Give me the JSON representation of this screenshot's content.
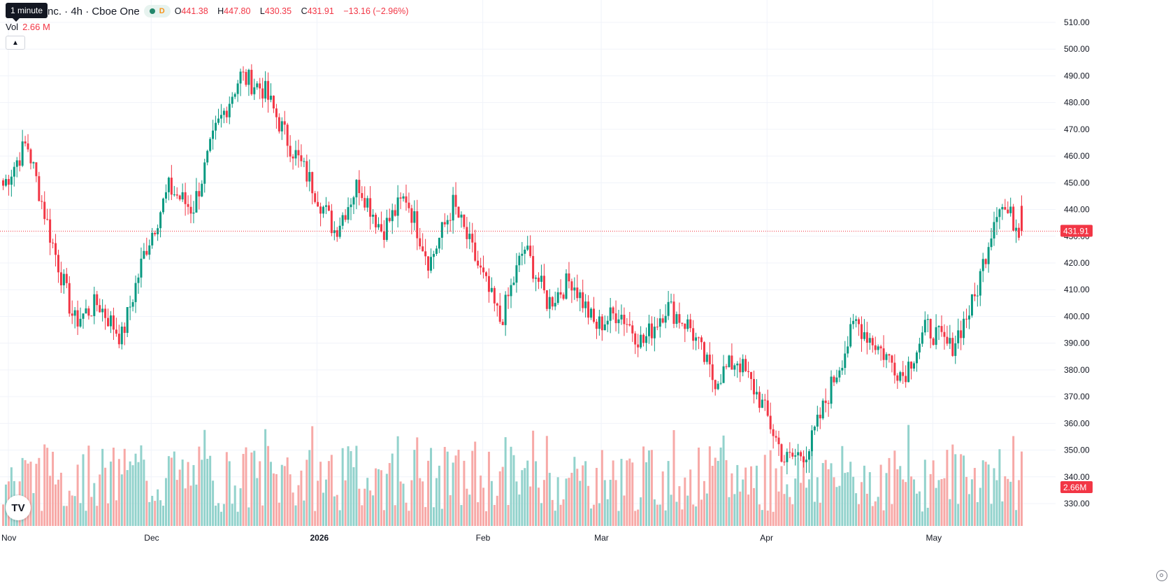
{
  "header": {
    "tooltip": "1 minute",
    "symbol_title": "nc. · 4h · Cboe One",
    "market_status_letter": "D",
    "ohlc": {
      "o_label": "O",
      "o": "441.38",
      "h_label": "H",
      "h": "447.80",
      "l_label": "L",
      "l": "430.35",
      "c_label": "C",
      "c": "431.91",
      "change": "−13.16 (−2.96%)"
    },
    "volume_label": "Vol",
    "volume_value": "2.66 M",
    "collapse_icon": "chevron-up-icon",
    "logo_text": "TV"
  },
  "colors": {
    "up": "#089981",
    "down": "#f23645",
    "up_volume": "#92d2cc",
    "down_volume": "#f7a9a7",
    "grid": "#f0f3fa",
    "axis_text": "#131722"
  },
  "chart_data": {
    "type": "candlestick",
    "interval": "4h",
    "price_axis": {
      "min": 330,
      "max": 510,
      "ticks": [
        "510.00",
        "500.00",
        "490.00",
        "480.00",
        "470.00",
        "460.00",
        "450.00",
        "440.00",
        "430.00",
        "420.00",
        "410.00",
        "400.00",
        "390.00",
        "380.00",
        "370.00",
        "360.00",
        "350.00",
        "340.00",
        "330.00"
      ]
    },
    "time_axis": {
      "labels": [
        {
          "label": "Nov",
          "bold": false
        },
        {
          "label": "Dec",
          "bold": false
        },
        {
          "label": "2026",
          "bold": true
        },
        {
          "label": "Feb",
          "bold": false
        },
        {
          "label": "Mar",
          "bold": false
        },
        {
          "label": "Apr",
          "bold": false
        },
        {
          "label": "May",
          "bold": false
        }
      ]
    },
    "last_price": "431.91",
    "last_volume": "2.66M",
    "key_points": [
      {
        "label": "Nov",
        "close": 449
      },
      {
        "label": "Nov",
        "close": 465
      },
      {
        "label": "Nov",
        "close": 430
      },
      {
        "label": "Nov",
        "close": 398
      },
      {
        "label": "Nov",
        "close": 405
      },
      {
        "label": "Nov",
        "close": 392
      },
      {
        "label": "Dec",
        "close": 425
      },
      {
        "label": "Dec",
        "close": 448
      },
      {
        "label": "Dec",
        "close": 440
      },
      {
        "label": "Dec",
        "close": 470
      },
      {
        "label": "Dec",
        "close": 490
      },
      {
        "label": "Dec",
        "close": 485
      },
      {
        "label": "Dec",
        "close": 466
      },
      {
        "label": "2026",
        "close": 450
      },
      {
        "label": "2026",
        "close": 432
      },
      {
        "label": "2026",
        "close": 450
      },
      {
        "label": "2026",
        "close": 432
      },
      {
        "label": "2026",
        "close": 445
      },
      {
        "label": "2026",
        "close": 420
      },
      {
        "label": "2026",
        "close": 442
      },
      {
        "label": "Feb",
        "close": 420
      },
      {
        "label": "Feb",
        "close": 398
      },
      {
        "label": "Feb",
        "close": 426
      },
      {
        "label": "Feb",
        "close": 405
      },
      {
        "label": "Feb",
        "close": 414
      },
      {
        "label": "Mar",
        "close": 396
      },
      {
        "label": "Mar",
        "close": 402
      },
      {
        "label": "Mar",
        "close": 390
      },
      {
        "label": "Mar",
        "close": 404
      },
      {
        "label": "Mar",
        "close": 396
      },
      {
        "label": "Mar",
        "close": 376
      },
      {
        "label": "Mar",
        "close": 384
      },
      {
        "label": "Apr",
        "close": 368
      },
      {
        "label": "Apr",
        "close": 346
      },
      {
        "label": "Apr",
        "close": 350
      },
      {
        "label": "Apr",
        "close": 375
      },
      {
        "label": "Apr",
        "close": 398
      },
      {
        "label": "Apr",
        "close": 388
      },
      {
        "label": "Apr",
        "close": 378
      },
      {
        "label": "May",
        "close": 396
      },
      {
        "label": "May",
        "close": 388
      },
      {
        "label": "May",
        "close": 406
      },
      {
        "label": "May",
        "close": 443
      },
      {
        "label": "May",
        "close": 431.91
      }
    ]
  }
}
